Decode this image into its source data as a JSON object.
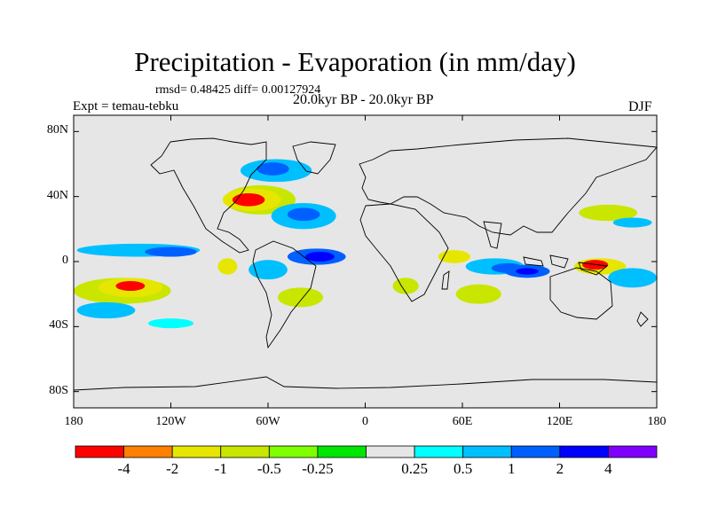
{
  "title": "Precipitation - Evaporation (in mm/day)",
  "stats_line": "rmsd= 0.48425 diff= 0.00127924",
  "expt_label": "Expt = temau-tebku",
  "period_label": "20.0kyr BP - 20.0kyr BP",
  "season_label": "DJF",
  "map": {
    "lat_ticks": [
      {
        "value": 80,
        "label": "80N"
      },
      {
        "value": 40,
        "label": "40N"
      },
      {
        "value": 0,
        "label": "0"
      },
      {
        "value": -40,
        "label": "40S"
      },
      {
        "value": -80,
        "label": "80S"
      }
    ],
    "lon_ticks": [
      {
        "value": -180,
        "label": "180"
      },
      {
        "value": -120,
        "label": "120W"
      },
      {
        "value": -60,
        "label": "60W"
      },
      {
        "value": 0,
        "label": "0"
      },
      {
        "value": 60,
        "label": "60E"
      },
      {
        "value": 120,
        "label": "120E"
      },
      {
        "value": 180,
        "label": "180"
      }
    ],
    "lat_range": [
      -90,
      90
    ],
    "lon_range": [
      -180,
      180
    ],
    "background_color": "#e6e6e6",
    "features": [
      {
        "name": "north-atlantic-dry-center",
        "lon": -72,
        "lat": 38,
        "lon_radius": 10,
        "lat_radius": 4,
        "level": -4
      },
      {
        "name": "north-atlantic-dry-ring",
        "lon": -70,
        "lat": 38,
        "lon_radius": 18,
        "lat_radius": 7,
        "level": -1
      },
      {
        "name": "north-atlantic-dry-outer",
        "lon": -65,
        "lat": 38,
        "lon_radius": 22,
        "lat_radius": 9,
        "level": -0.5
      },
      {
        "name": "north-atlantic-wet",
        "lon": -55,
        "lat": 56,
        "lon_radius": 22,
        "lat_radius": 7,
        "level": 1
      },
      {
        "name": "north-atlantic-wet-core",
        "lon": -57,
        "lat": 57,
        "lon_radius": 10,
        "lat_radius": 4,
        "level": 2
      },
      {
        "name": "mid-atlantic-wet",
        "lon": -38,
        "lat": 28,
        "lon_radius": 20,
        "lat_radius": 8,
        "level": 1
      },
      {
        "name": "mid-atlantic-wet-core",
        "lon": -38,
        "lat": 29,
        "lon_radius": 10,
        "lat_radius": 4,
        "level": 2
      },
      {
        "name": "central-pacific-wet",
        "lon": -140,
        "lat": 7,
        "lon_radius": 38,
        "lat_radius": 4,
        "level": 1
      },
      {
        "name": "central-pacific-wet-core",
        "lon": -120,
        "lat": 6,
        "lon_radius": 16,
        "lat_radius": 3,
        "level": 2
      },
      {
        "name": "south-pacific-dry-center",
        "lon": -145,
        "lat": -15,
        "lon_radius": 9,
        "lat_radius": 3,
        "level": -4
      },
      {
        "name": "south-pacific-dry",
        "lon": -145,
        "lat": -16,
        "lon_radius": 20,
        "lat_radius": 6,
        "level": -1
      },
      {
        "name": "south-pacific-dry-outer",
        "lon": -150,
        "lat": -18,
        "lon_radius": 30,
        "lat_radius": 8,
        "level": -0.5
      },
      {
        "name": "south-pacific-wet",
        "lon": -160,
        "lat": -30,
        "lon_radius": 18,
        "lat_radius": 5,
        "level": 1
      },
      {
        "name": "tropical-atlantic-wet",
        "lon": -30,
        "lat": 3,
        "lon_radius": 18,
        "lat_radius": 5,
        "level": 2
      },
      {
        "name": "tropical-atlantic-deep",
        "lon": -28,
        "lat": 3,
        "lon_radius": 9,
        "lat_radius": 3,
        "level": 4
      },
      {
        "name": "amazon-wet",
        "lon": -60,
        "lat": -5,
        "lon_radius": 12,
        "lat_radius": 6,
        "level": 1
      },
      {
        "name": "south-atlantic-dry",
        "lon": -40,
        "lat": -22,
        "lon_radius": 14,
        "lat_radius": 6,
        "level": -0.5
      },
      {
        "name": "east-pacific-dry",
        "lon": -85,
        "lat": -3,
        "lon_radius": 6,
        "lat_radius": 5,
        "level": -1
      },
      {
        "name": "east-africa-dry",
        "lon": 55,
        "lat": 3,
        "lon_radius": 10,
        "lat_radius": 4,
        "level": -1
      },
      {
        "name": "indian-ocean-wet",
        "lon": 80,
        "lat": -3,
        "lon_radius": 18,
        "lat_radius": 5,
        "level": 1
      },
      {
        "name": "indian-ocean-wet-core",
        "lon": 88,
        "lat": -4,
        "lon_radius": 10,
        "lat_radius": 3,
        "level": 2
      },
      {
        "name": "indonesia-wet",
        "lon": 100,
        "lat": -6,
        "lon_radius": 14,
        "lat_radius": 4,
        "level": 2
      },
      {
        "name": "indonesia-deep",
        "lon": 100,
        "lat": -6,
        "lon_radius": 7,
        "lat_radius": 2,
        "level": 4
      },
      {
        "name": "maritime-dry-center",
        "lon": 142,
        "lat": -2,
        "lon_radius": 8,
        "lat_radius": 3,
        "level": -4
      },
      {
        "name": "maritime-dry",
        "lon": 145,
        "lat": -3,
        "lon_radius": 16,
        "lat_radius": 5,
        "level": -1
      },
      {
        "name": "west-pacific-wet",
        "lon": 165,
        "lat": -10,
        "lon_radius": 15,
        "lat_radius": 6,
        "level": 1
      },
      {
        "name": "southern-indian-dry",
        "lon": 70,
        "lat": -20,
        "lon_radius": 14,
        "lat_radius": 6,
        "level": -0.5
      },
      {
        "name": "south-africa-dry",
        "lon": 25,
        "lat": -15,
        "lon_radius": 8,
        "lat_radius": 5,
        "level": -0.5
      },
      {
        "name": "north-pacific-dry",
        "lon": 150,
        "lat": 30,
        "lon_radius": 18,
        "lat_radius": 5,
        "level": -0.5
      },
      {
        "name": "kuroshio-wet",
        "lon": 165,
        "lat": 24,
        "lon_radius": 12,
        "lat_radius": 3,
        "level": 1
      },
      {
        "name": "southern-ocean-wet",
        "lon": -120,
        "lat": -38,
        "lon_radius": 14,
        "lat_radius": 3,
        "level": 0.5
      }
    ]
  },
  "colorbar": {
    "colors": [
      "#ff0000",
      "#ff8000",
      "#e6e600",
      "#c8e600",
      "#80ff00",
      "#00e600",
      "#e6e6e6",
      "#00ffff",
      "#00bfff",
      "#0060ff",
      "#0000ff",
      "#7f00ff"
    ],
    "labels": [
      "-4",
      "-2",
      "-1",
      "-0.5",
      "-0.25",
      "0.25",
      "0.5",
      "1",
      "2",
      "4"
    ]
  }
}
